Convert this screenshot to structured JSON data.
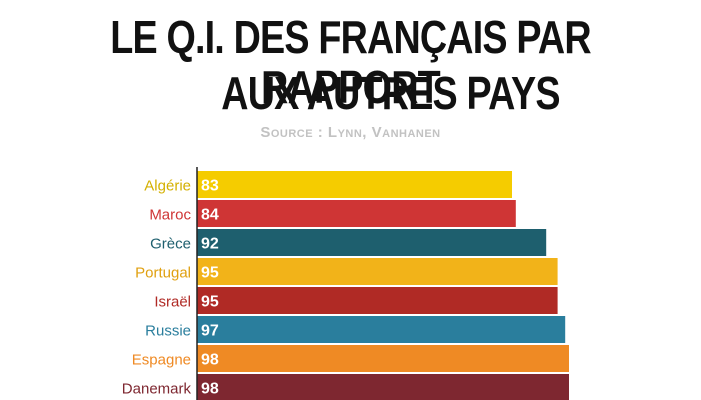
{
  "title_line1": "LE Q.I. DES FRANÇAIS PAR RAPPORT",
  "title_line2": "AUX AUTRES PAYS",
  "source": "Source : Lynn, Vanhanen",
  "chart_data": {
    "type": "bar",
    "orientation": "horizontal",
    "title": "LE Q.I. DES FRANÇAIS PAR RAPPORT AUX AUTRES PAYS",
    "categories": [
      "Algérie",
      "Maroc",
      "Grèce",
      "Portugal",
      "Israël",
      "Russie",
      "Espagne",
      "Danemark"
    ],
    "values": [
      83,
      84,
      92,
      95,
      95,
      97,
      98,
      98
    ],
    "colors": [
      "#f5cc00",
      "#cf3535",
      "#1e5f6e",
      "#f2b319",
      "#b02a25",
      "#2a7e9d",
      "#ef8a24",
      "#7e2730"
    ],
    "label_colors": [
      "#d4b000",
      "#cf3535",
      "#1e5f6e",
      "#e0a010",
      "#b02a25",
      "#2a7e9d",
      "#ef8a24",
      "#7e2730"
    ],
    "xlim": [
      0,
      100
    ],
    "grid": false,
    "legend": "none"
  }
}
